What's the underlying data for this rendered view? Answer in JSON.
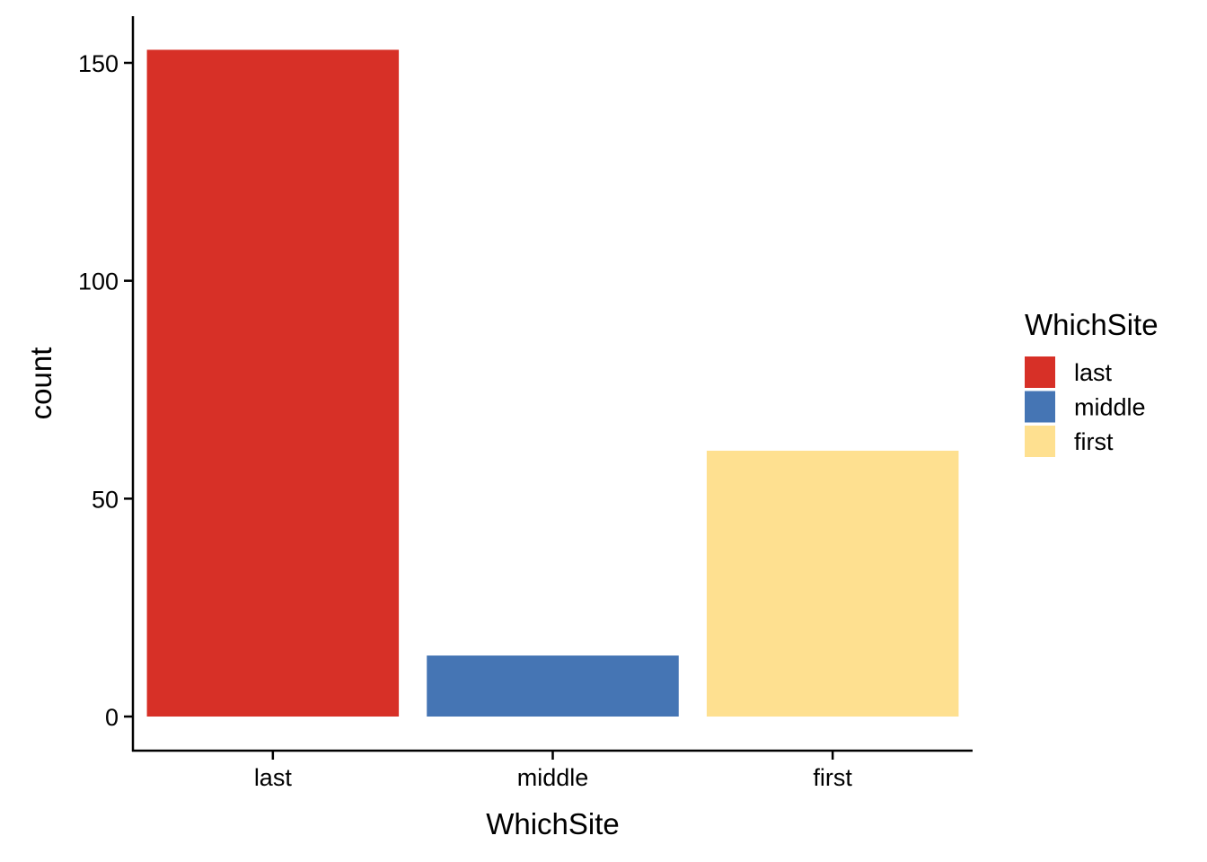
{
  "chart_data": {
    "type": "bar",
    "categories": [
      "last",
      "middle",
      "first"
    ],
    "values": [
      153,
      14,
      61
    ],
    "colors": [
      "#D73027",
      "#4575B4",
      "#FEE090"
    ],
    "title": "",
    "xlabel": "WhichSite",
    "ylabel": "count",
    "ylim": [
      0,
      157.5
    ],
    "yticks": [
      0,
      50,
      100,
      150
    ],
    "grid": false,
    "legend": {
      "title": "WhichSite",
      "position": "right",
      "entries": [
        {
          "label": "last",
          "color": "#D73027"
        },
        {
          "label": "middle",
          "color": "#4575B4"
        },
        {
          "label": "first",
          "color": "#FEE090"
        }
      ]
    }
  }
}
